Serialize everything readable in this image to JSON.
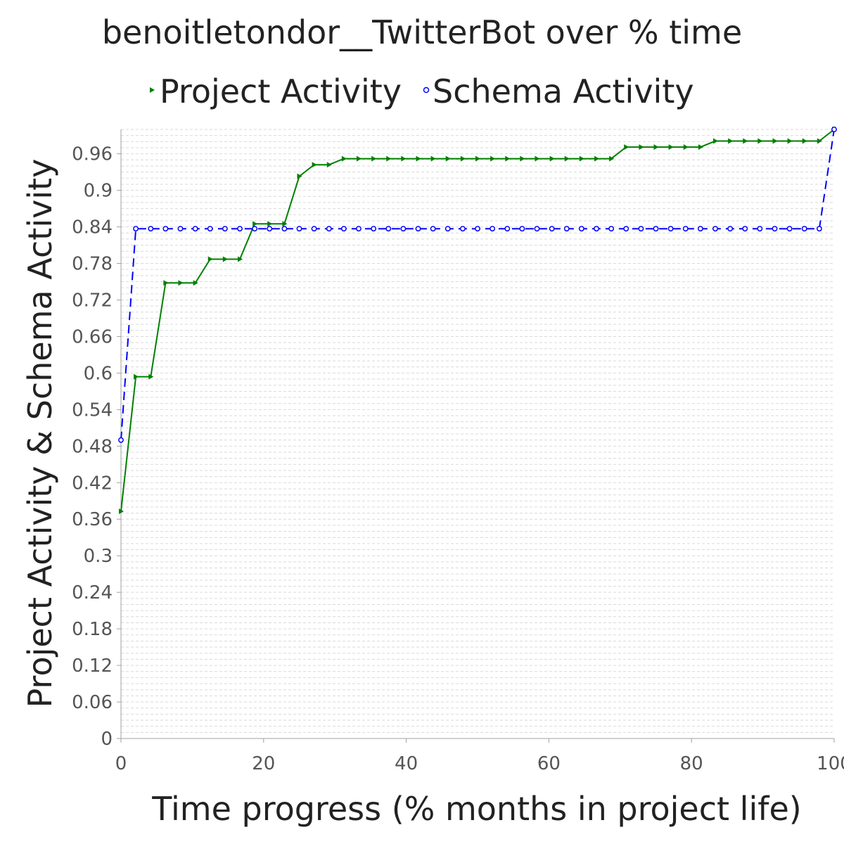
{
  "chart_data": {
    "type": "line",
    "title": "benoitletondor__TwitterBot over % time",
    "xlabel": "Time progress (% months in project life)",
    "ylabel": "Project Activity & Schema Activity",
    "xlim": [
      0,
      100
    ],
    "ylim": [
      0,
      1.0
    ],
    "x_ticks": [
      "0",
      "20",
      "40",
      "60",
      "80",
      "100"
    ],
    "y_ticks": [
      "0",
      "0.06",
      "0.12",
      "0.18",
      "0.24",
      "0.3",
      "0.36",
      "0.42",
      "0.48",
      "0.54",
      "0.6",
      "0.66",
      "0.72",
      "0.78",
      "0.84",
      "0.9",
      "0.96"
    ],
    "grid": true,
    "legend_position": "top",
    "series": [
      {
        "name": "Project Activity",
        "color": "#008000",
        "line_style": "solid",
        "marker": "triangle-right",
        "x": [
          0,
          2.08,
          4.17,
          6.25,
          8.33,
          10.42,
          12.5,
          14.58,
          16.67,
          18.75,
          20.83,
          22.92,
          25,
          27.08,
          29.17,
          31.25,
          33.33,
          35.42,
          37.5,
          39.58,
          41.67,
          43.75,
          45.83,
          47.92,
          50,
          52.08,
          54.17,
          56.25,
          58.33,
          60.42,
          62.5,
          64.58,
          66.67,
          68.75,
          70.83,
          72.92,
          75,
          77.08,
          79.17,
          81.25,
          83.33,
          85.42,
          87.5,
          89.58,
          91.67,
          93.75,
          95.83,
          97.92,
          100
        ],
        "y": [
          0.373,
          0.594,
          0.594,
          0.748,
          0.748,
          0.748,
          0.787,
          0.787,
          0.787,
          0.845,
          0.845,
          0.845,
          0.923,
          0.942,
          0.942,
          0.952,
          0.952,
          0.952,
          0.952,
          0.952,
          0.952,
          0.952,
          0.952,
          0.952,
          0.952,
          0.952,
          0.952,
          0.952,
          0.952,
          0.952,
          0.952,
          0.952,
          0.952,
          0.952,
          0.971,
          0.971,
          0.971,
          0.971,
          0.971,
          0.971,
          0.981,
          0.981,
          0.981,
          0.981,
          0.981,
          0.981,
          0.981,
          0.981,
          1.0
        ]
      },
      {
        "name": "Schema Activity",
        "color": "#0000ff",
        "line_style": "dashed",
        "marker": "circle",
        "x": [
          0,
          2.08,
          4.17,
          6.25,
          8.33,
          10.42,
          12.5,
          14.58,
          16.67,
          18.75,
          20.83,
          22.92,
          25,
          27.08,
          29.17,
          31.25,
          33.33,
          35.42,
          37.5,
          39.58,
          41.67,
          43.75,
          45.83,
          47.92,
          50,
          52.08,
          54.17,
          56.25,
          58.33,
          60.42,
          62.5,
          64.58,
          66.67,
          68.75,
          70.83,
          72.92,
          75,
          77.08,
          79.17,
          81.25,
          83.33,
          85.42,
          87.5,
          89.58,
          91.67,
          93.75,
          95.83,
          97.92,
          100
        ],
        "y": [
          0.49,
          0.837,
          0.837,
          0.837,
          0.837,
          0.837,
          0.837,
          0.837,
          0.837,
          0.837,
          0.837,
          0.837,
          0.837,
          0.837,
          0.837,
          0.837,
          0.837,
          0.837,
          0.837,
          0.837,
          0.837,
          0.837,
          0.837,
          0.837,
          0.837,
          0.837,
          0.837,
          0.837,
          0.837,
          0.837,
          0.837,
          0.837,
          0.837,
          0.837,
          0.837,
          0.837,
          0.837,
          0.837,
          0.837,
          0.837,
          0.837,
          0.837,
          0.837,
          0.837,
          0.837,
          0.837,
          0.837,
          0.837,
          1.0
        ]
      }
    ]
  }
}
